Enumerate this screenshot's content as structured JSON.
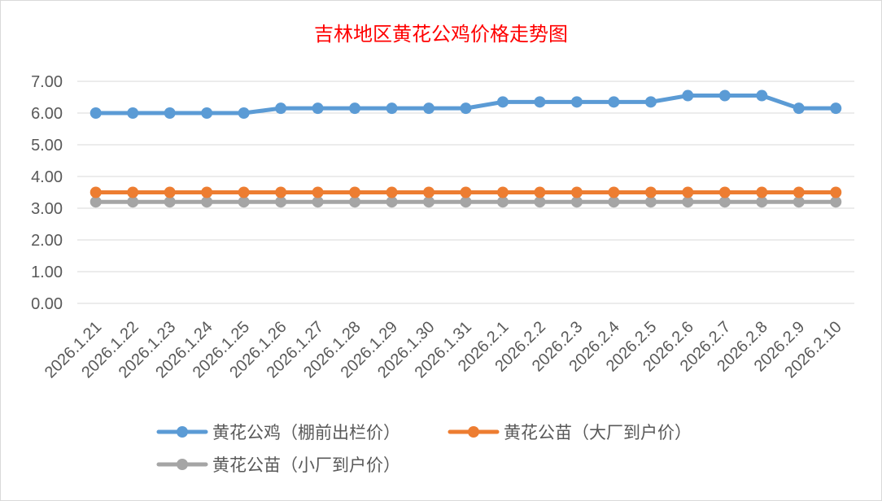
{
  "chart_data": {
    "type": "line",
    "title": "吉林地区黄花公鸡价格走势图",
    "xlabel": "",
    "ylabel": "",
    "ylim": [
      0,
      7
    ],
    "ytick_step": 1,
    "grid": true,
    "legend_position": "bottom",
    "categories": [
      "2026.1.21",
      "2026.1.22",
      "2026.1.23",
      "2026.1.24",
      "2026.1.25",
      "2026.1.26",
      "2026.1.27",
      "2026.1.28",
      "2026.1.29",
      "2026.1.30",
      "2026.1.31",
      "2026.2.1",
      "2026.2.2",
      "2026.2.3",
      "2026.2.4",
      "2026.2.5",
      "2026.2.6",
      "2026.2.7",
      "2026.2.8",
      "2026.2.9",
      "2026.2.10"
    ],
    "series": [
      {
        "name": "黄花公鸡（棚前出栏价）",
        "color": "#5b9bd5",
        "values": [
          6.0,
          6.0,
          6.0,
          6.0,
          6.0,
          6.15,
          6.15,
          6.15,
          6.15,
          6.15,
          6.15,
          6.35,
          6.35,
          6.35,
          6.35,
          6.35,
          6.55,
          6.55,
          6.55,
          6.15,
          6.15
        ]
      },
      {
        "name": "黄花公苗（大厂到户价）",
        "color": "#ed7d31",
        "values": [
          3.5,
          3.5,
          3.5,
          3.5,
          3.5,
          3.5,
          3.5,
          3.5,
          3.5,
          3.5,
          3.5,
          3.5,
          3.5,
          3.5,
          3.5,
          3.5,
          3.5,
          3.5,
          3.5,
          3.5,
          3.5
        ]
      },
      {
        "name": "黄花公苗（小厂到户价）",
        "color": "#a5a5a5",
        "values": [
          3.2,
          3.2,
          3.2,
          3.2,
          3.2,
          3.2,
          3.2,
          3.2,
          3.2,
          3.2,
          3.2,
          3.2,
          3.2,
          3.2,
          3.2,
          3.2,
          3.2,
          3.2,
          3.2,
          3.2,
          3.2
        ]
      }
    ]
  }
}
